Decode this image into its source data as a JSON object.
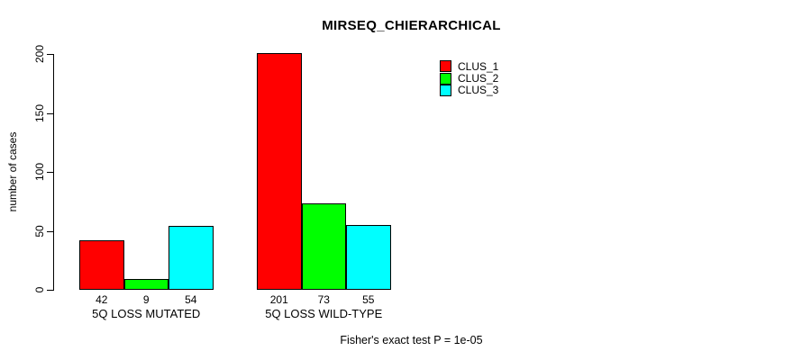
{
  "title": "MIRSEQ_CHIERARCHICAL",
  "ylabel": "number of cases",
  "footer": "Fisher's exact test P = 1e-05",
  "chart_data": {
    "type": "bar",
    "title": "MIRSEQ_CHIERARCHICAL",
    "xlabel": "",
    "ylabel": "number of cases",
    "categories": [
      "5Q LOSS MUTATED",
      "5Q LOSS WILD-TYPE"
    ],
    "series": [
      {
        "name": "CLUS_1",
        "color": "#ff0000",
        "values": [
          42,
          201
        ]
      },
      {
        "name": "CLUS_2",
        "color": "#00ff00",
        "values": [
          9,
          73
        ]
      },
      {
        "name": "CLUS_3",
        "color": "#00ffff",
        "values": [
          54,
          55
        ]
      }
    ],
    "bar_value_labels": [
      [
        42,
        9,
        54
      ],
      [
        201,
        73,
        55
      ]
    ],
    "yticks": [
      0,
      50,
      100,
      150,
      200
    ],
    "ylim": [
      0,
      200
    ],
    "grid": false,
    "legend_position": "inside-top-right",
    "annotation": "Fisher's exact test P = 1e-05",
    "bar_edge_color": "#000000",
    "background_color": "#ffffff"
  }
}
